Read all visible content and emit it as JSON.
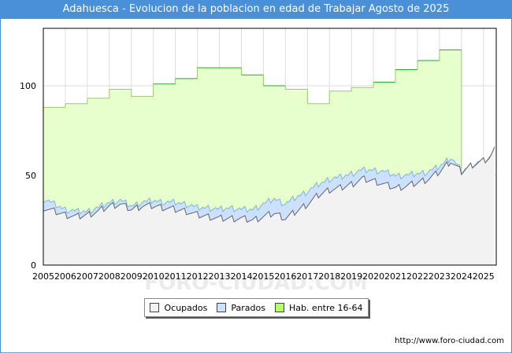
{
  "title": "Adahuesca - Evolucion de la poblacion en edad de Trabajar Agosto de 2025",
  "footer_url": "http://www.foro-ciudad.com",
  "watermark": "FORO-CIUDAD.COM",
  "colors": {
    "title_bg": "#4a90d9",
    "ocupados_fill": "#f2f2f2",
    "ocupados_line": "#666666",
    "parados_fill": "#cce0ff",
    "parados_line": "#7fb3ea",
    "hab_fill": "#e6ffcc",
    "hab_line": "#22aa22"
  },
  "legend": {
    "ocupados": "Ocupados",
    "parados": "Parados",
    "hab": "Hab. entre 16-64"
  },
  "chart_data": {
    "type": "area",
    "title": "Adahuesca - Evolucion de la poblacion en edad de Trabajar Agosto de 2025",
    "x_ticks": [
      "2005",
      "2006",
      "2007",
      "2008",
      "2009",
      "2010",
      "2011",
      "2012",
      "2013",
      "2014",
      "2015",
      "2016",
      "2017",
      "2018",
      "2019",
      "2020",
      "2021",
      "2022",
      "2023",
      "2024",
      "2025"
    ],
    "y_ticks": [
      0,
      50,
      100
    ],
    "xlim": [
      2005,
      2025.58
    ],
    "ylim": [
      0,
      132
    ],
    "hab_steps": [
      {
        "year": 2005,
        "value": 88
      },
      {
        "year": 2006,
        "value": 90
      },
      {
        "year": 2007,
        "value": 93
      },
      {
        "year": 2008,
        "value": 98
      },
      {
        "year": 2009,
        "value": 94
      },
      {
        "year": 2010,
        "value": 101
      },
      {
        "year": 2011,
        "value": 104
      },
      {
        "year": 2012,
        "value": 110
      },
      {
        "year": 2013,
        "value": 110
      },
      {
        "year": 2014,
        "value": 106
      },
      {
        "year": 2015,
        "value": 100
      },
      {
        "year": 2016,
        "value": 98
      },
      {
        "year": 2017,
        "value": 90
      },
      {
        "year": 2018,
        "value": 97
      },
      {
        "year": 2019,
        "value": 99
      },
      {
        "year": 2020,
        "value": 102
      },
      {
        "year": 2021,
        "value": 109
      },
      {
        "year": 2022,
        "value": 114
      },
      {
        "year": 2023,
        "value": 120
      }
    ],
    "hab_end_year": 2024,
    "ocupados_keyframes": [
      [
        2005.0,
        32
      ],
      [
        2005.5,
        30
      ],
      [
        2006.0,
        28
      ],
      [
        2006.5,
        27
      ],
      [
        2007.0,
        28
      ],
      [
        2007.5,
        30
      ],
      [
        2008.0,
        33
      ],
      [
        2008.5,
        34
      ],
      [
        2009.0,
        31
      ],
      [
        2009.5,
        33
      ],
      [
        2010.0,
        33
      ],
      [
        2010.5,
        32
      ],
      [
        2011.0,
        31
      ],
      [
        2011.5,
        30
      ],
      [
        2012.0,
        28
      ],
      [
        2012.5,
        27
      ],
      [
        2013.0,
        26
      ],
      [
        2013.5,
        26
      ],
      [
        2014.0,
        26
      ],
      [
        2014.5,
        25
      ],
      [
        2015.0,
        27
      ],
      [
        2015.5,
        29
      ],
      [
        2016.0,
        26
      ],
      [
        2016.5,
        30
      ],
      [
        2017.0,
        34
      ],
      [
        2017.5,
        39
      ],
      [
        2018.0,
        42
      ],
      [
        2018.5,
        43
      ],
      [
        2019.0,
        45
      ],
      [
        2019.5,
        48
      ],
      [
        2020.0,
        47
      ],
      [
        2020.5,
        45
      ],
      [
        2021.0,
        43
      ],
      [
        2021.5,
        44
      ],
      [
        2022.0,
        46
      ],
      [
        2022.5,
        48
      ],
      [
        2023.0,
        52
      ],
      [
        2023.5,
        58
      ],
      [
        2024.0,
        52
      ],
      [
        2024.5,
        56
      ],
      [
        2025.0,
        58
      ],
      [
        2025.3,
        60
      ],
      [
        2025.58,
        66
      ]
    ],
    "parados_keyframes": [
      [
        2005.0,
        5
      ],
      [
        2005.5,
        4
      ],
      [
        2006.0,
        3
      ],
      [
        2006.5,
        3
      ],
      [
        2007.0,
        2
      ],
      [
        2007.5,
        2
      ],
      [
        2008.0,
        2
      ],
      [
        2008.5,
        2
      ],
      [
        2009.0,
        2
      ],
      [
        2009.5,
        2
      ],
      [
        2010.0,
        3
      ],
      [
        2010.5,
        3
      ],
      [
        2011.0,
        4
      ],
      [
        2011.5,
        4
      ],
      [
        2012.0,
        4
      ],
      [
        2012.5,
        5
      ],
      [
        2013.0,
        5
      ],
      [
        2013.5,
        6
      ],
      [
        2014.0,
        5
      ],
      [
        2014.5,
        6
      ],
      [
        2015.0,
        7
      ],
      [
        2015.5,
        8
      ],
      [
        2016.0,
        8
      ],
      [
        2016.5,
        8
      ],
      [
        2017.0,
        7
      ],
      [
        2017.5,
        6
      ],
      [
        2018.0,
        6
      ],
      [
        2018.5,
        6
      ],
      [
        2019.0,
        6
      ],
      [
        2019.5,
        5
      ],
      [
        2020.0,
        6
      ],
      [
        2020.5,
        7
      ],
      [
        2021.0,
        7
      ],
      [
        2021.5,
        6
      ],
      [
        2022.0,
        5
      ],
      [
        2022.5,
        4
      ],
      [
        2023.0,
        3
      ],
      [
        2023.5,
        2
      ],
      [
        2023.95,
        1
      ],
      [
        2024.0,
        0
      ],
      [
        2025.58,
        0
      ]
    ]
  }
}
